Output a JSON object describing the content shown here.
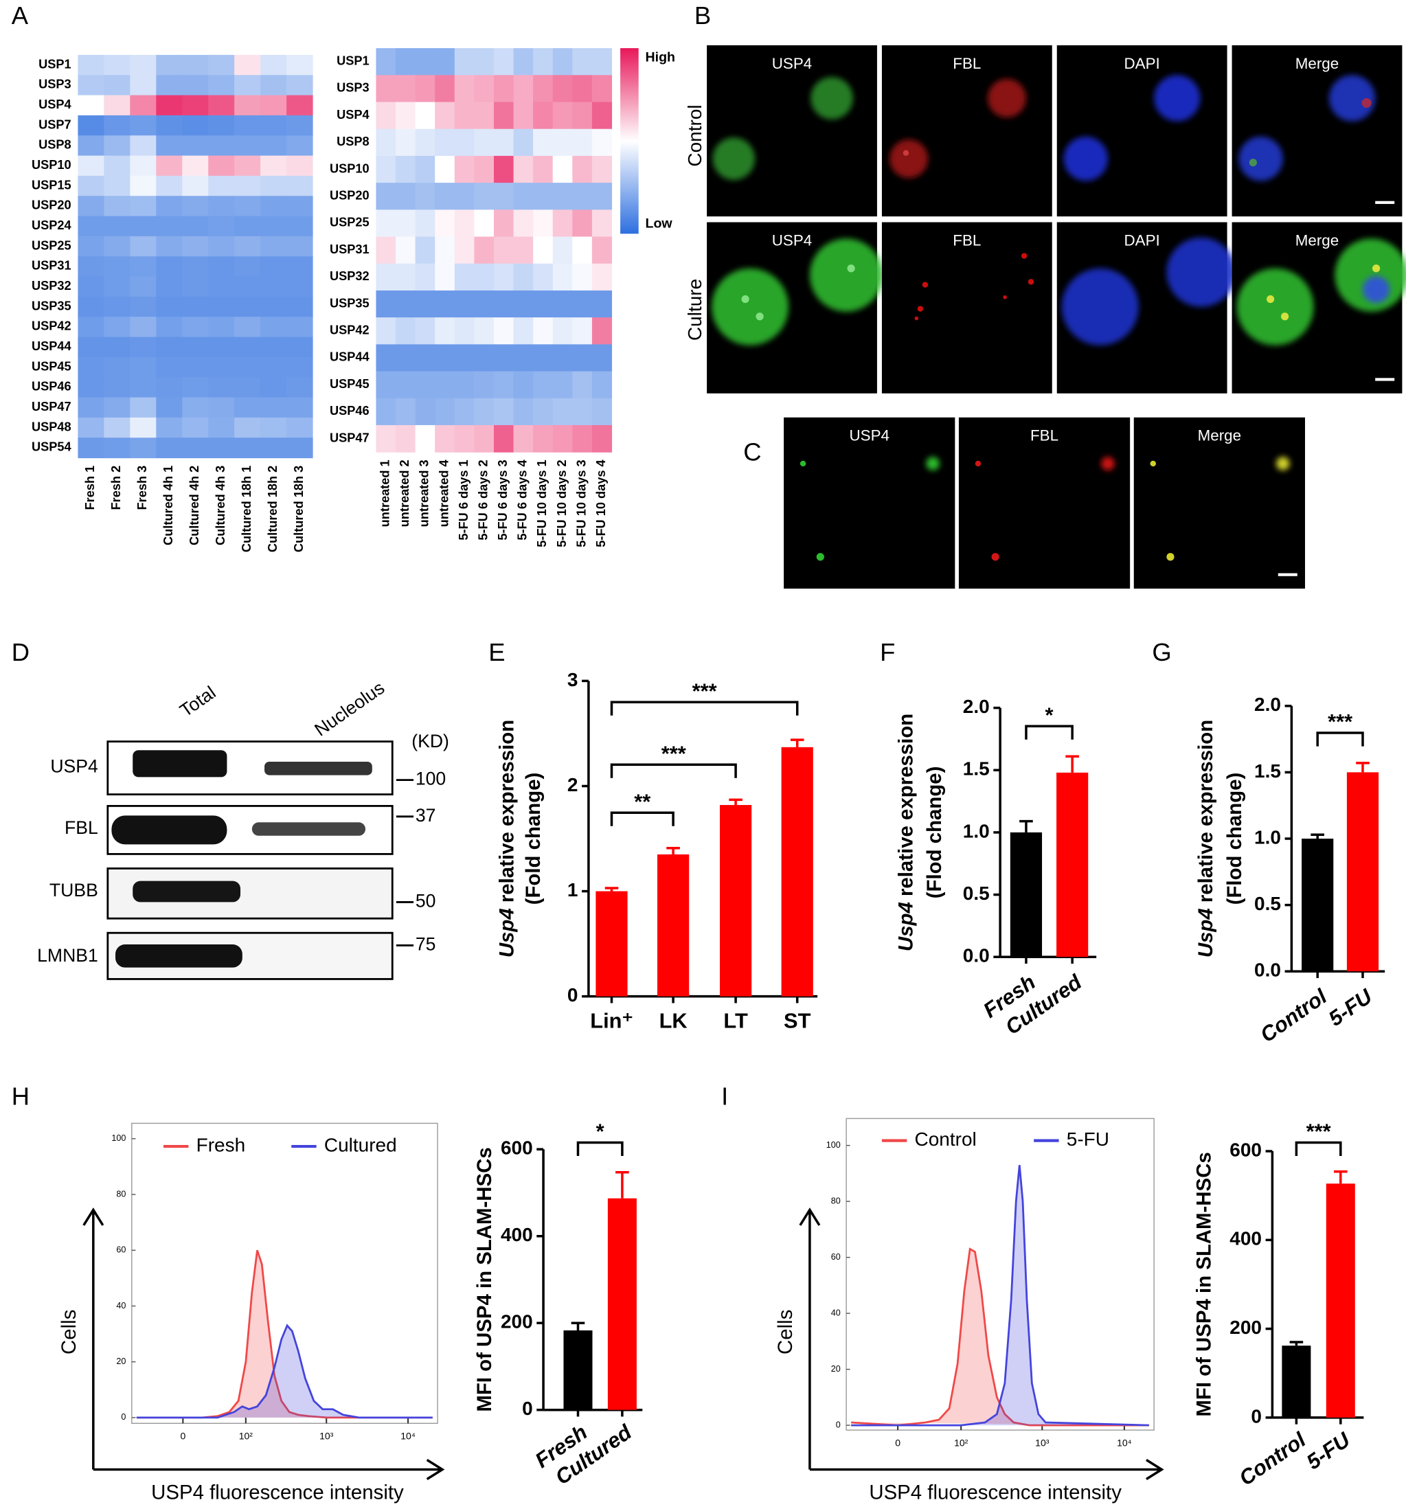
{
  "panel_letters": [
    "A",
    "B",
    "C",
    "D",
    "E",
    "F",
    "G",
    "H",
    "I"
  ],
  "microscopy": {
    "B": {
      "conditions": [
        "Control",
        "Culture"
      ],
      "channels": [
        "USP4",
        "FBL",
        "DAPI",
        "Merge"
      ]
    },
    "C": {
      "channels": [
        "USP4",
        "FBL",
        "Merge"
      ]
    }
  },
  "western_blot": {
    "columns": [
      "Total",
      "Nucleolus"
    ],
    "proteins": [
      "USP4",
      "FBL",
      "TUBB",
      "LMNB1"
    ],
    "unit": "(KD)",
    "markers": [
      100,
      37,
      50,
      75
    ]
  },
  "chart_data": [
    {
      "type": "heatmap",
      "rows": [
        "USP1",
        "USP3",
        "USP4",
        "USP7",
        "USP8",
        "USP10",
        "USP15",
        "USP20",
        "USP24",
        "USP25",
        "USP31",
        "USP32",
        "USP35",
        "USP42",
        "USP44",
        "USP45",
        "USP46",
        "USP47",
        "USP48",
        "USP54"
      ],
      "columns": [
        "Fresh 1",
        "Fresh 2",
        "Fresh 3",
        "Cultured 4h 1",
        "Cultured 4h 2",
        "Cultured 4h 3",
        "Cultured 18h 1",
        "Cultured 18h 2",
        "Cultured 18h 3"
      ],
      "zlim": [
        0,
        1
      ],
      "colormap": [
        "#2d6fe0",
        "#ffffff",
        "#e8175a"
      ],
      "values": [
        [
          0.36,
          0.38,
          0.4,
          0.28,
          0.28,
          0.3,
          0.56,
          0.4,
          0.43
        ],
        [
          0.32,
          0.31,
          0.4,
          0.23,
          0.23,
          0.25,
          0.32,
          0.28,
          0.31
        ],
        [
          0.5,
          0.58,
          0.76,
          0.93,
          0.91,
          0.86,
          0.71,
          0.72,
          0.86
        ],
        [
          0.1,
          0.14,
          0.16,
          0.12,
          0.11,
          0.12,
          0.14,
          0.14,
          0.15
        ],
        [
          0.2,
          0.26,
          0.38,
          0.18,
          0.18,
          0.18,
          0.18,
          0.18,
          0.2
        ],
        [
          0.43,
          0.36,
          0.45,
          0.66,
          0.55,
          0.7,
          0.66,
          0.56,
          0.58
        ],
        [
          0.33,
          0.36,
          0.47,
          0.38,
          0.44,
          0.38,
          0.38,
          0.36,
          0.36
        ],
        [
          0.21,
          0.26,
          0.27,
          0.19,
          0.21,
          0.19,
          0.2,
          0.18,
          0.18
        ],
        [
          0.16,
          0.16,
          0.16,
          0.16,
          0.16,
          0.17,
          0.16,
          0.16,
          0.16
        ],
        [
          0.18,
          0.21,
          0.26,
          0.21,
          0.23,
          0.21,
          0.23,
          0.21,
          0.21
        ],
        [
          0.15,
          0.16,
          0.17,
          0.14,
          0.15,
          0.14,
          0.15,
          0.14,
          0.14
        ],
        [
          0.14,
          0.16,
          0.18,
          0.14,
          0.15,
          0.14,
          0.14,
          0.14,
          0.14
        ],
        [
          0.13,
          0.14,
          0.15,
          0.13,
          0.13,
          0.13,
          0.13,
          0.13,
          0.13
        ],
        [
          0.16,
          0.19,
          0.23,
          0.17,
          0.19,
          0.18,
          0.21,
          0.18,
          0.18
        ],
        [
          0.13,
          0.13,
          0.14,
          0.13,
          0.13,
          0.13,
          0.13,
          0.13,
          0.13
        ],
        [
          0.14,
          0.15,
          0.16,
          0.14,
          0.14,
          0.14,
          0.14,
          0.14,
          0.14
        ],
        [
          0.14,
          0.15,
          0.16,
          0.15,
          0.16,
          0.15,
          0.15,
          0.14,
          0.15
        ],
        [
          0.18,
          0.21,
          0.29,
          0.16,
          0.22,
          0.21,
          0.18,
          0.18,
          0.18
        ],
        [
          0.25,
          0.33,
          0.44,
          0.22,
          0.25,
          0.22,
          0.28,
          0.27,
          0.25
        ],
        [
          0.15,
          0.16,
          0.18,
          0.15,
          0.15,
          0.15,
          0.15,
          0.15,
          0.15
        ]
      ]
    },
    {
      "type": "heatmap",
      "rows": [
        "USP1",
        "USP3",
        "USP4",
        "USP8",
        "USP10",
        "USP20",
        "USP25",
        "USP31",
        "USP32",
        "USP35",
        "USP42",
        "USP44",
        "USP45",
        "USP46",
        "USP47"
      ],
      "columns": [
        "untreated 1",
        "untreated 2",
        "untreated 3",
        "untreated 4",
        "5-FU 6 days 1",
        "5-FU 6 days 2",
        "5-FU 6 days 3",
        "5-FU 6 days 4",
        "5-FU 10 days 1",
        "5-FU 10 days 2",
        "5-FU 10 days 3",
        "5-FU 10 days 4"
      ],
      "zlim": [
        0,
        1
      ],
      "colormap": [
        "#2d6fe0",
        "#ffffff",
        "#e8175a"
      ],
      "colorbar": {
        "high": "High",
        "low": "Low"
      },
      "values": [
        [
          0.25,
          0.22,
          0.22,
          0.22,
          0.35,
          0.35,
          0.38,
          0.3,
          0.35,
          0.3,
          0.35,
          0.35
        ],
        [
          0.7,
          0.7,
          0.72,
          0.78,
          0.66,
          0.68,
          0.72,
          0.68,
          0.74,
          0.78,
          0.8,
          0.76
        ],
        [
          0.58,
          0.54,
          0.5,
          0.62,
          0.66,
          0.66,
          0.8,
          0.68,
          0.76,
          0.72,
          0.74,
          0.84
        ],
        [
          0.42,
          0.45,
          0.42,
          0.4,
          0.4,
          0.42,
          0.42,
          0.35,
          0.45,
          0.45,
          0.45,
          0.48
        ],
        [
          0.4,
          0.36,
          0.33,
          0.5,
          0.64,
          0.66,
          0.88,
          0.6,
          0.65,
          0.5,
          0.65,
          0.6
        ],
        [
          0.26,
          0.26,
          0.28,
          0.26,
          0.26,
          0.28,
          0.28,
          0.26,
          0.26,
          0.26,
          0.26,
          0.26
        ],
        [
          0.45,
          0.45,
          0.42,
          0.52,
          0.55,
          0.5,
          0.66,
          0.55,
          0.52,
          0.62,
          0.7,
          0.58
        ],
        [
          0.58,
          0.48,
          0.36,
          0.48,
          0.55,
          0.66,
          0.62,
          0.62,
          0.5,
          0.44,
          0.5,
          0.66
        ],
        [
          0.42,
          0.42,
          0.4,
          0.48,
          0.38,
          0.38,
          0.4,
          0.36,
          0.4,
          0.45,
          0.48,
          0.55
        ],
        [
          0.15,
          0.15,
          0.15,
          0.15,
          0.15,
          0.15,
          0.15,
          0.15,
          0.15,
          0.15,
          0.15,
          0.15
        ],
        [
          0.4,
          0.36,
          0.38,
          0.44,
          0.42,
          0.44,
          0.48,
          0.42,
          0.48,
          0.44,
          0.46,
          0.78
        ],
        [
          0.15,
          0.15,
          0.15,
          0.15,
          0.15,
          0.15,
          0.15,
          0.15,
          0.15,
          0.15,
          0.15,
          0.15
        ],
        [
          0.22,
          0.22,
          0.22,
          0.22,
          0.22,
          0.23,
          0.24,
          0.22,
          0.24,
          0.24,
          0.28,
          0.24
        ],
        [
          0.24,
          0.26,
          0.23,
          0.24,
          0.26,
          0.28,
          0.3,
          0.26,
          0.28,
          0.3,
          0.3,
          0.28
        ],
        [
          0.58,
          0.6,
          0.5,
          0.62,
          0.64,
          0.66,
          0.84,
          0.66,
          0.7,
          0.72,
          0.76,
          0.8
        ]
      ]
    },
    {
      "type": "bar",
      "categories": [
        "Lin⁺",
        "LK",
        "LT",
        "ST"
      ],
      "values": [
        1.0,
        1.35,
        1.82,
        2.37
      ],
      "errors": [
        0.03,
        0.06,
        0.05,
        0.07
      ],
      "colors": [
        "#ff0000",
        "#ff0000",
        "#ff0000",
        "#ff0000"
      ],
      "ylim": [
        0,
        3
      ],
      "yticks": [
        0,
        1,
        2,
        3
      ],
      "ylabel_italic": "Usp4",
      "ylabel": " relative expression",
      "ylabel2": "(Fold change)",
      "significance": [
        {
          "label": "**",
          "between": [
            0,
            1
          ]
        },
        {
          "label": "***",
          "between": [
            0,
            2
          ]
        },
        {
          "label": "***",
          "between": [
            0,
            3
          ]
        }
      ]
    },
    {
      "type": "bar",
      "categories": [
        "Fresh",
        "Cultured"
      ],
      "values": [
        1.0,
        1.48
      ],
      "errors": [
        0.09,
        0.13
      ],
      "colors": [
        "#000000",
        "#ff0000"
      ],
      "ylim": [
        0,
        2
      ],
      "yticks": [
        {
          "value": 0,
          "label": "0.0"
        },
        {
          "value": 0.5,
          "label": "0.5"
        },
        {
          "value": 1,
          "label": "1.0"
        },
        {
          "value": 1.5,
          "label": "1.5"
        },
        {
          "value": 2,
          "label": "2.0"
        }
      ],
      "ylabel_italic": "Usp4",
      "ylabel": " relative expression",
      "ylabel2": "(Flod change)",
      "significance": [
        {
          "label": "*",
          "between": [
            0,
            1
          ]
        }
      ]
    },
    {
      "type": "bar",
      "categories": [
        "Control",
        "5-FU"
      ],
      "values": [
        1.0,
        1.5
      ],
      "errors": [
        0.03,
        0.07
      ],
      "colors": [
        "#000000",
        "#ff0000"
      ],
      "ylim": [
        0,
        2
      ],
      "yticks": [
        {
          "value": 0,
          "label": "0.0"
        },
        {
          "value": 0.5,
          "label": "0.5"
        },
        {
          "value": 1,
          "label": "1.0"
        },
        {
          "value": 1.5,
          "label": "1.5"
        },
        {
          "value": 2,
          "label": "2.0"
        }
      ],
      "ylabel_italic": "Usp4",
      "ylabel": " relative expression",
      "ylabel2": "(Flod change)",
      "significance": [
        {
          "label": "***",
          "between": [
            0,
            1
          ]
        }
      ]
    },
    {
      "type": "line",
      "xscale": "biexponential",
      "xlim": [
        -70,
        23000
      ],
      "ylim": [
        0,
        100
      ],
      "xticks": [
        {
          "value": 0,
          "label": "0"
        },
        {
          "value": 100,
          "label": "10²"
        },
        {
          "value": 1000,
          "label": "10³"
        },
        {
          "value": 10000,
          "label": "10⁴"
        }
      ],
      "yticks": [
        0,
        20,
        40,
        60,
        80,
        100
      ],
      "xlabel": "USP4 fluorescence intensity",
      "ylabel": "Cells",
      "series": [
        {
          "name": "Fresh",
          "color": "#f04848",
          "x": [
            -60,
            -20,
            0,
            20,
            40,
            60,
            80,
            100,
            120,
            140,
            160,
            190,
            230,
            280,
            350,
            450,
            600,
            1000,
            3000,
            20000
          ],
          "values": [
            0,
            0,
            0,
            0,
            0.5,
            2,
            6,
            20,
            45,
            60,
            55,
            35,
            15,
            6,
            2,
            1,
            0.5,
            0,
            0,
            0
          ]
        },
        {
          "name": "Cultured",
          "color": "#4444dd",
          "x": [
            -60,
            0,
            40,
            70,
            90,
            110,
            140,
            180,
            230,
            280,
            330,
            380,
            450,
            550,
            700,
            900,
            1200,
            1600,
            2500,
            20000
          ],
          "values": [
            0,
            0,
            0,
            2,
            4,
            3,
            4,
            8,
            18,
            28,
            33,
            31,
            24,
            14,
            6,
            3,
            3,
            1,
            0,
            0
          ]
        }
      ]
    },
    {
      "type": "bar",
      "categories": [
        "Fresh",
        "Cultured"
      ],
      "values": [
        183,
        487
      ],
      "errors": [
        17,
        60
      ],
      "colors": [
        "#000000",
        "#ff0000"
      ],
      "ylim": [
        0,
        600
      ],
      "yticks": [
        0,
        200,
        400,
        600
      ],
      "ylabel": "MFI of USP4 in SLAM-HSCs",
      "significance": [
        {
          "label": "*",
          "between": [
            0,
            1
          ]
        }
      ]
    },
    {
      "type": "line",
      "xscale": "biexponential",
      "xlim": [
        -70,
        23000
      ],
      "ylim": [
        0,
        100
      ],
      "xticks": [
        {
          "value": 0,
          "label": "0"
        },
        {
          "value": 100,
          "label": "10²"
        },
        {
          "value": 1000,
          "label": "10³"
        },
        {
          "value": 10000,
          "label": "10⁴"
        }
      ],
      "yticks": [
        0,
        20,
        40,
        60,
        80,
        100
      ],
      "xlabel": "USP4 fluorescence intensity",
      "ylabel": "Cells",
      "series": [
        {
          "name": "Control",
          "color": "#f04848",
          "x": [
            -60,
            0,
            30,
            50,
            70,
            90,
            110,
            130,
            150,
            180,
            220,
            280,
            350,
            450,
            700,
            20000
          ],
          "values": [
            1,
            0,
            1,
            2,
            6,
            22,
            48,
            63,
            62,
            48,
            25,
            10,
            4,
            1,
            0,
            0
          ]
        },
        {
          "name": "5-FU",
          "color": "#4444dd",
          "x": [
            -60,
            100,
            200,
            280,
            350,
            420,
            480,
            530,
            580,
            650,
            750,
            900,
            1100,
            20000
          ],
          "values": [
            0,
            0,
            1,
            4,
            15,
            45,
            80,
            93,
            80,
            45,
            15,
            4,
            1,
            0
          ]
        }
      ]
    },
    {
      "type": "bar",
      "categories": [
        "Control",
        "5-FU"
      ],
      "values": [
        162,
        527
      ],
      "errors": [
        8,
        27
      ],
      "colors": [
        "#000000",
        "#ff0000"
      ],
      "ylim": [
        0,
        600
      ],
      "yticks": [
        0,
        200,
        400,
        600
      ],
      "ylabel": "MFI of USP4 in SLAM-HSCs",
      "significance": [
        {
          "label": "***",
          "between": [
            0,
            1
          ]
        }
      ]
    }
  ]
}
